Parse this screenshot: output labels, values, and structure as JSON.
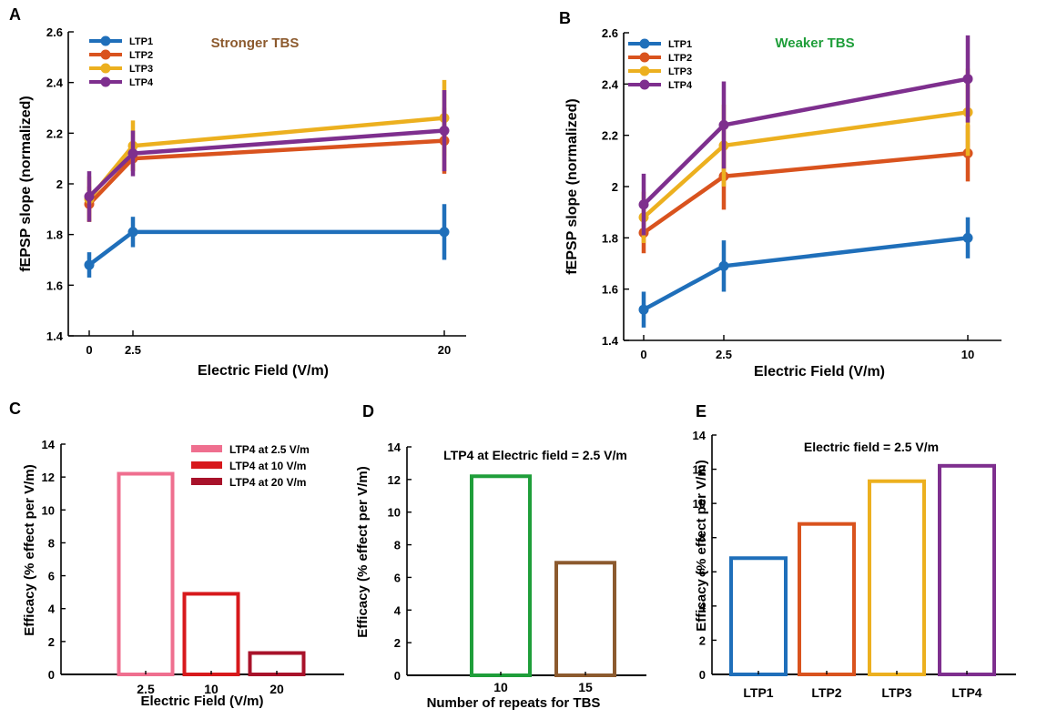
{
  "colors": {
    "LTP1": "#1f6fba",
    "LTP2": "#d9531e",
    "LTP3": "#ecb01f",
    "LTP4": "#7e2f8e",
    "c_2_5": "#ef6f8f",
    "c_10": "#d7191c",
    "c_20": "#a8122a",
    "green": "#1f9e3a",
    "brown": "#8c5a2e"
  },
  "chart_data": [
    {
      "panel": "A",
      "type": "line",
      "title": "Stronger TBS",
      "xlabel": "Electric Field (V/m)",
      "ylabel": "fEPSP slope (normalized)",
      "x": [
        0,
        2.5,
        20
      ],
      "x_tick_labels": [
        "0",
        "2.5",
        "20"
      ],
      "ylim": [
        1.4,
        2.6
      ],
      "y_ticks": [
        1.4,
        1.6,
        1.8,
        2,
        2.2,
        2.4,
        2.6
      ],
      "y_tick_labels": [
        "1.4",
        "1.6",
        "1.8",
        "2",
        "2.2",
        "2.4",
        "2.6"
      ],
      "legend": "top-left",
      "series": [
        {
          "name": "LTP1",
          "values": [
            1.68,
            1.81,
            1.81
          ],
          "err": [
            0.05,
            0.06,
            0.11
          ]
        },
        {
          "name": "LTP2",
          "values": [
            1.92,
            2.1,
            2.17
          ],
          "err": [
            0.07,
            0.05,
            0.13
          ]
        },
        {
          "name": "LTP3",
          "values": [
            1.94,
            2.15,
            2.26
          ],
          "err": [
            0.09,
            0.1,
            0.15
          ]
        },
        {
          "name": "LTP4",
          "values": [
            1.95,
            2.12,
            2.21
          ],
          "err": [
            0.1,
            0.09,
            0.16
          ]
        }
      ]
    },
    {
      "panel": "B",
      "type": "line",
      "title": "Weaker TBS",
      "xlabel": "Electric Field (V/m)",
      "ylabel": "fEPSP slope (normalized)",
      "x": [
        0,
        2.5,
        10
      ],
      "x_tick_labels": [
        "0",
        "2.5",
        "10"
      ],
      "ylim": [
        1.4,
        2.6
      ],
      "y_ticks": [
        1.4,
        1.6,
        1.8,
        2,
        2.2,
        2.4,
        2.6
      ],
      "y_tick_labels": [
        "1.4",
        "1.6",
        "1.8",
        "2",
        "2.2",
        "2.4",
        "2.6"
      ],
      "legend": "top-left",
      "series": [
        {
          "name": "LTP1",
          "values": [
            1.52,
            1.69,
            1.8
          ],
          "err": [
            0.07,
            0.1,
            0.08
          ]
        },
        {
          "name": "LTP2",
          "values": [
            1.82,
            2.04,
            2.13
          ],
          "err": [
            0.08,
            0.13,
            0.11
          ]
        },
        {
          "name": "LTP3",
          "values": [
            1.88,
            2.16,
            2.29
          ],
          "err": [
            0.1,
            0.16,
            0.17
          ]
        },
        {
          "name": "LTP4",
          "values": [
            1.93,
            2.24,
            2.42
          ],
          "err": [
            0.12,
            0.17,
            0.17
          ]
        }
      ]
    },
    {
      "panel": "C",
      "type": "bar",
      "title": "",
      "xlabel": "Electric Field (V/m)",
      "ylabel": "Efficacy (% effect per V/m)",
      "categories": [
        "2.5",
        "10",
        "20"
      ],
      "values": [
        12.2,
        4.9,
        1.3
      ],
      "bar_colors": [
        "#ef6f8f",
        "#d7191c",
        "#a8122a"
      ],
      "ylim": [
        0,
        14
      ],
      "y_ticks": [
        0,
        2,
        4,
        6,
        8,
        10,
        12,
        14
      ],
      "y_tick_labels": [
        "0",
        "2",
        "4",
        "6",
        "8",
        "10",
        "12",
        "14"
      ],
      "legend": "top-right",
      "legend_entries": [
        "LTP4 at 2.5 V/m",
        "LTP4 at 10 V/m",
        "LTP4 at 20 V/m"
      ]
    },
    {
      "panel": "D",
      "type": "bar",
      "title": "LTP4 at Electric field = 2.5 V/m",
      "xlabel": "Number of repeats for TBS",
      "ylabel": "Efficacy (% effect per V/m)",
      "categories": [
        "10",
        "15"
      ],
      "values": [
        12.2,
        6.9
      ],
      "bar_colors": [
        "#1f9e3a",
        "#8c5a2e"
      ],
      "ylim": [
        0,
        14
      ],
      "y_ticks": [
        0,
        2,
        4,
        6,
        8,
        10,
        12,
        14
      ],
      "y_tick_labels": [
        "0",
        "2",
        "4",
        "6",
        "8",
        "10",
        "12",
        "14"
      ]
    },
    {
      "panel": "E",
      "type": "bar",
      "title": "Electric field = 2.5 V/m",
      "xlabel": "",
      "ylabel": "Efficacy (% effect per V/m)",
      "categories": [
        "LTP1",
        "LTP2",
        "LTP3",
        "LTP4"
      ],
      "values": [
        6.8,
        8.8,
        11.3,
        12.2
      ],
      "bar_colors": [
        "#1f6fba",
        "#d9531e",
        "#ecb01f",
        "#7e2f8e"
      ],
      "ylim": [
        0,
        14
      ],
      "y_ticks": [
        0,
        2,
        4,
        6,
        8,
        10,
        12,
        14
      ],
      "y_tick_labels": [
        "0",
        "2",
        "4",
        "6",
        "8",
        "10",
        "12",
        "14"
      ]
    }
  ]
}
